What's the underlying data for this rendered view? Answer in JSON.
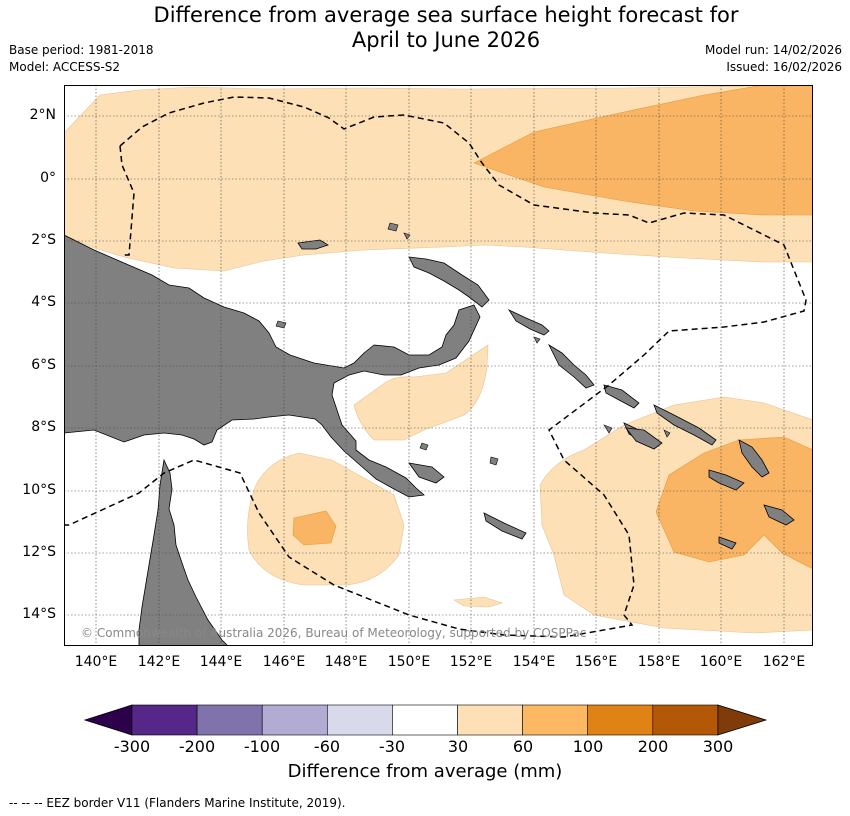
{
  "title_line1": "Difference from average sea surface height forecast for",
  "title_line2": "April to June 2026",
  "base_period": "Base period: 1981-2018",
  "model": "Model: ACCESS-S2",
  "model_run": "Model run: 14/02/2026",
  "issued": "Issued: 16/02/2026",
  "lat_labels": [
    "2°N",
    "0°",
    "2°S",
    "4°S",
    "6°S",
    "8°S",
    "10°S",
    "12°S",
    "14°S"
  ],
  "lon_labels": [
    "140°E",
    "142°E",
    "144°E",
    "146°E",
    "148°E",
    "150°E",
    "152°E",
    "154°E",
    "156°E",
    "158°E",
    "160°E",
    "162°E"
  ],
  "copyright": "© Commonwealth of Australia 2026, Bureau of Meteorology, supported by COSPPac",
  "colorbar": {
    "ticks": [
      "-300",
      "-200",
      "-100",
      "-60",
      "-30",
      "30",
      "60",
      "100",
      "200",
      "300"
    ],
    "colors": [
      "#2d004b",
      "#542788",
      "#8073ac",
      "#b2abd2",
      "#d8daeb",
      "#ffffff",
      "#fee0b6",
      "#fdb863",
      "#e08214",
      "#b35806",
      "#7f3b08"
    ],
    "title": "Difference from average (mm)"
  },
  "footnote": "--  --  -- EEZ border V11 (Flanders Marine Institute, 2019).",
  "colors": {
    "land": "#808080",
    "light_orange": "#fde0b6",
    "mid_orange": "#f9b563"
  }
}
